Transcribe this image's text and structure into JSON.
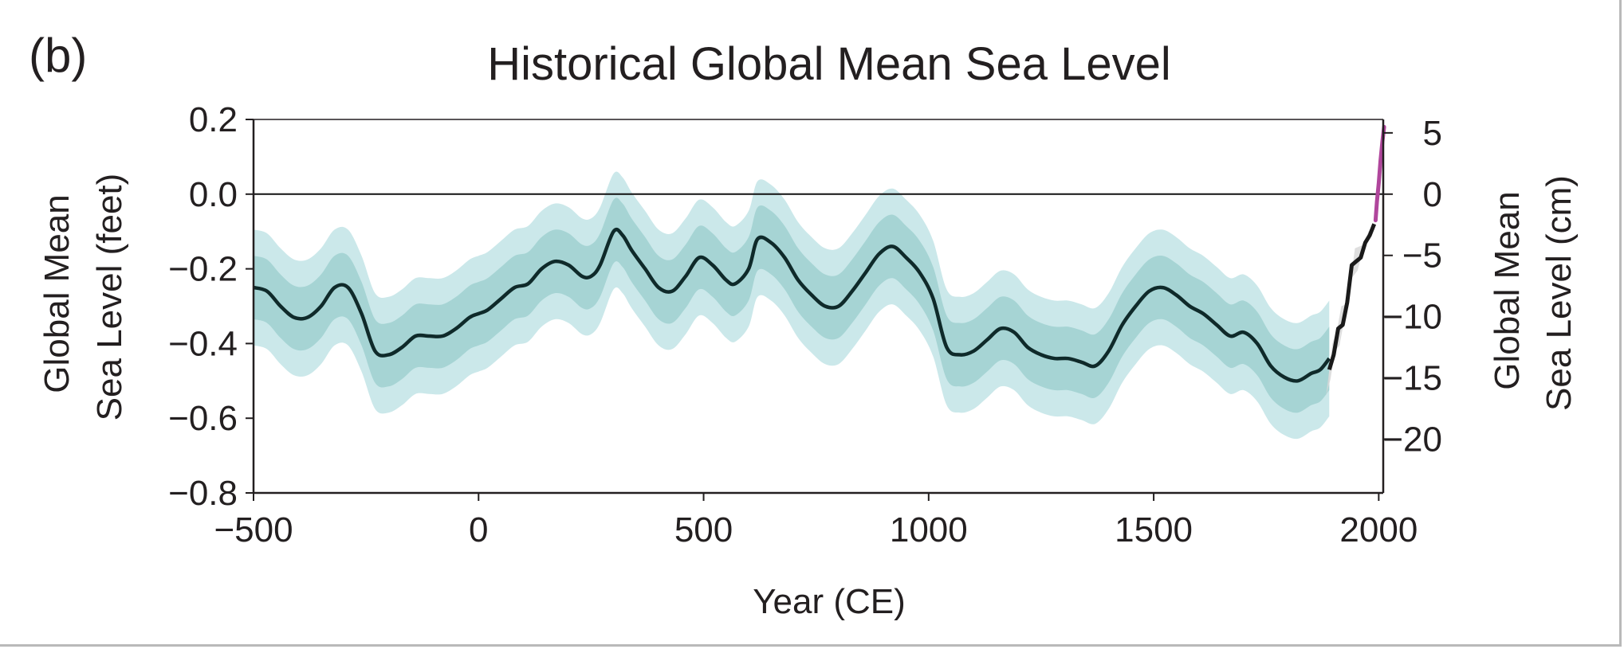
{
  "chart_data": {
    "type": "line",
    "panel_label": "(b)",
    "title": "Historical Global Mean Sea Level",
    "xlabel": "Year (CE)",
    "ylabel_left": [
      "Global Mean",
      "Sea Level (feet)"
    ],
    "ylabel_right": [
      "Global Mean",
      "Sea Level (cm)"
    ],
    "xlim": [
      -500,
      2010
    ],
    "ylim_feet": [
      -0.8,
      0.2
    ],
    "x_ticks": [
      -500,
      0,
      500,
      1000,
      1500,
      2000
    ],
    "x_tick_labels": [
      "−500",
      "0",
      "500",
      "1000",
      "1500",
      "2000"
    ],
    "y_ticks_left": [
      0.2,
      0.0,
      -0.2,
      -0.4,
      -0.6,
      -0.8
    ],
    "y_tick_labels_left": [
      "0.2",
      "0.0",
      "−0.2",
      "−0.4",
      "−0.6",
      "−0.8"
    ],
    "y_ticks_right_cm": [
      5,
      0,
      -5,
      -10,
      -15,
      -20
    ],
    "y_tick_labels_right": [
      "5",
      "0",
      "−5",
      "−10",
      "−15",
      "−20"
    ],
    "zero_line": 0.0,
    "grid": false,
    "colors": {
      "proxy_line": "#0f2a2a",
      "band_outer": "#cbe8ea",
      "band_inner": "#a6d4d4",
      "tide_gauge_line": "#1a1a1a",
      "tide_gauge_band": "#d8d8d8",
      "satellite_line": "#b0469c",
      "axis": "#231f20"
    },
    "series": [
      {
        "x": [
          -500,
          -470,
          -440,
          -410,
          -380,
          -350,
          -320,
          -290,
          -260,
          -230,
          -200,
          -170,
          -140,
          -110,
          -80,
          -50,
          -20,
          0,
          20,
          50,
          80,
          110,
          140,
          170,
          200,
          230,
          250,
          270,
          300,
          320,
          340,
          370,
          400,
          430,
          460,
          490,
          520,
          550,
          570,
          600,
          620,
          650,
          680,
          710,
          740,
          770,
          800,
          830,
          860,
          890,
          920,
          950,
          980,
          1010,
          1040,
          1070,
          1100,
          1130,
          1160,
          1190,
          1220,
          1250,
          1280,
          1310,
          1340,
          1370,
          1400,
          1430,
          1460,
          1490,
          1520,
          1550,
          1580,
          1610,
          1640,
          1670,
          1700,
          1730,
          1760,
          1790,
          1820,
          1850,
          1870,
          1890
        ],
        "y": [
          -0.25,
          -0.26,
          -0.3,
          -0.33,
          -0.33,
          -0.3,
          -0.25,
          -0.25,
          -0.32,
          -0.42,
          -0.43,
          -0.41,
          -0.38,
          -0.38,
          -0.38,
          -0.36,
          -0.33,
          -0.32,
          -0.31,
          -0.28,
          -0.25,
          -0.24,
          -0.2,
          -0.18,
          -0.19,
          -0.22,
          -0.22,
          -0.19,
          -0.1,
          -0.11,
          -0.15,
          -0.2,
          -0.25,
          -0.26,
          -0.22,
          -0.17,
          -0.19,
          -0.23,
          -0.24,
          -0.2,
          -0.12,
          -0.13,
          -0.17,
          -0.23,
          -0.27,
          -0.3,
          -0.3,
          -0.26,
          -0.21,
          -0.16,
          -0.14,
          -0.17,
          -0.21,
          -0.28,
          -0.41,
          -0.43,
          -0.42,
          -0.39,
          -0.36,
          -0.37,
          -0.41,
          -0.43,
          -0.44,
          -0.44,
          -0.45,
          -0.46,
          -0.42,
          -0.35,
          -0.3,
          -0.26,
          -0.25,
          -0.27,
          -0.3,
          -0.32,
          -0.35,
          -0.38,
          -0.37,
          -0.4,
          -0.46,
          -0.49,
          -0.5,
          -0.48,
          -0.47,
          -0.44
        ],
        "band_inner": 0.085,
        "band_outer": 0.155
      },
      {
        "x": [
          1890,
          1900,
          1910,
          1920,
          1930,
          1940,
          1950,
          1960,
          1970,
          1980,
          1990
        ],
        "y": [
          -0.47,
          -0.43,
          -0.36,
          -0.35,
          -0.29,
          -0.19,
          -0.18,
          -0.17,
          -0.13,
          -0.11,
          -0.08
        ]
      },
      {
        "x": [
          1993,
          1996,
          2000,
          2004,
          2008,
          2012
        ],
        "y": [
          -0.07,
          -0.02,
          0.03,
          0.09,
          0.14,
          0.18
        ]
      }
    ]
  }
}
